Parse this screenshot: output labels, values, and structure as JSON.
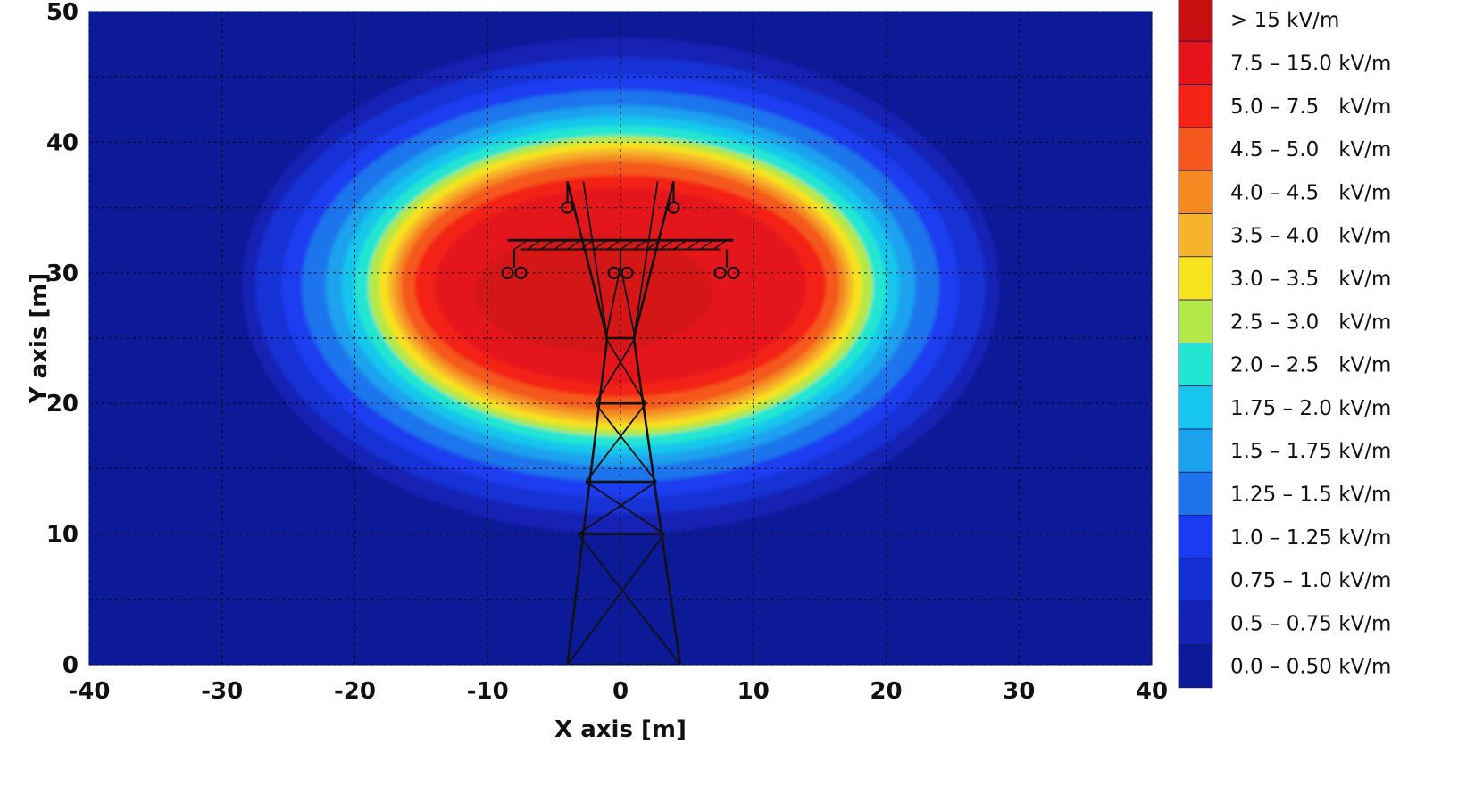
{
  "chart_data": {
    "type": "heatmap",
    "title": "",
    "xlabel": "X axis [m]",
    "ylabel": "Y axis [m]",
    "xlim": [
      -40,
      40
    ],
    "ylim": [
      0,
      50
    ],
    "x_ticks": [
      "-40",
      "-30",
      "-20",
      "-10",
      "0",
      "10",
      "20",
      "30",
      "40"
    ],
    "y_ticks": [
      "0",
      "10",
      "20",
      "30",
      "40",
      "50"
    ],
    "grid": true,
    "legend_position": "right",
    "field_center": [
      0,
      29
    ],
    "tower_conductors": [
      [
        -8,
        30
      ],
      [
        -7,
        30
      ],
      [
        0,
        30
      ],
      [
        1,
        30
      ],
      [
        8,
        30
      ],
      [
        9,
        30
      ],
      [
        -4,
        35
      ],
      [
        4,
        35
      ]
    ],
    "contour_bands": [
      {
        "label": "> 15 kV/m",
        "color": "#c81010",
        "rx": 0,
        "ry": 0
      },
      {
        "label": "7.5 – 15.0 kV/m",
        "color": "#e4141a",
        "rx": 14,
        "ry": 7.5
      },
      {
        "label": "5.0 – 7.5   kV/m",
        "color": "#f42414",
        "rx": 15.5,
        "ry": 8.5
      },
      {
        "label": "4.5 – 5.0   kV/m",
        "color": "#f5581c",
        "rx": 16.5,
        "ry": 9.5
      },
      {
        "label": "4.0 – 4.5   kV/m",
        "color": "#f58a22",
        "rx": 17,
        "ry": 10
      },
      {
        "label": "3.5 – 4.0   kV/m",
        "color": "#f6b42a",
        "rx": 17.5,
        "ry": 10.5
      },
      {
        "label": "3.0 – 3.5   kV/m",
        "color": "#f7e21e",
        "rx": 18.2,
        "ry": 11
      },
      {
        "label": "2.5 – 3.0   kV/m",
        "color": "#b4e84a",
        "rx": 19,
        "ry": 11.5
      },
      {
        "label": "2.0 – 2.5   kV/m",
        "color": "#22e6d2",
        "rx": 20,
        "ry": 12.3
      },
      {
        "label": "1.75 – 2.0 kV/m",
        "color": "#16c6ec",
        "rx": 21,
        "ry": 13
      },
      {
        "label": "1.5 – 1.75 kV/m",
        "color": "#1aa2ee",
        "rx": 22.2,
        "ry": 13.8
      },
      {
        "label": "1.25 – 1.5 kV/m",
        "color": "#1f74ec",
        "rx": 24,
        "ry": 15
      },
      {
        "label": "1.0 – 1.25 kV/m",
        "color": "#1a3cf0",
        "rx": 25.5,
        "ry": 16.2
      },
      {
        "label": "0.75 – 1.0 kV/m",
        "color": "#1430d4",
        "rx": 27.5,
        "ry": 17.5
      },
      {
        "label": "0.5 – 0.75 kV/m",
        "color": "#1222b4",
        "rx": 28.5,
        "ry": 19
      },
      {
        "label": "0.0 – 0.50 kV/m",
        "color": "#0c1a98",
        "rx": 0,
        "ry": 0
      }
    ]
  }
}
